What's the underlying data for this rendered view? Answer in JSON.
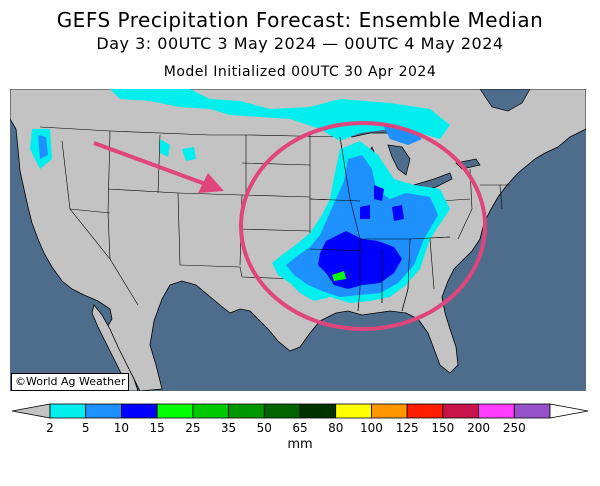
{
  "header": {
    "title": "GEFS Precipitation Forecast: Ensemble Median",
    "subtitle": "Day 3: 00UTC 3 May 2024 — 00UTC 4 May 2024",
    "init": "Model Initialized 00UTC 30 Apr 2024"
  },
  "map": {
    "credit": "©World Ag Weather",
    "colors": {
      "ocean": "#4e6d8d",
      "land": "#c3c3c3",
      "highlight_ellipse": "#e0457b",
      "arrow": "#e0457b"
    }
  },
  "colorbar": {
    "units": "mm",
    "labels": [
      "2",
      "5",
      "10",
      "15",
      "25",
      "35",
      "50",
      "65",
      "80",
      "100",
      "125",
      "150",
      "200",
      "250"
    ],
    "colors": [
      "#00eeee",
      "#1e90ff",
      "#0000ff",
      "#00ff00",
      "#00c800",
      "#009600",
      "#006400",
      "#003200",
      "#ffff00",
      "#ff9600",
      "#ff1e00",
      "#c8144b",
      "#ff3cff",
      "#9650c8"
    ]
  }
}
